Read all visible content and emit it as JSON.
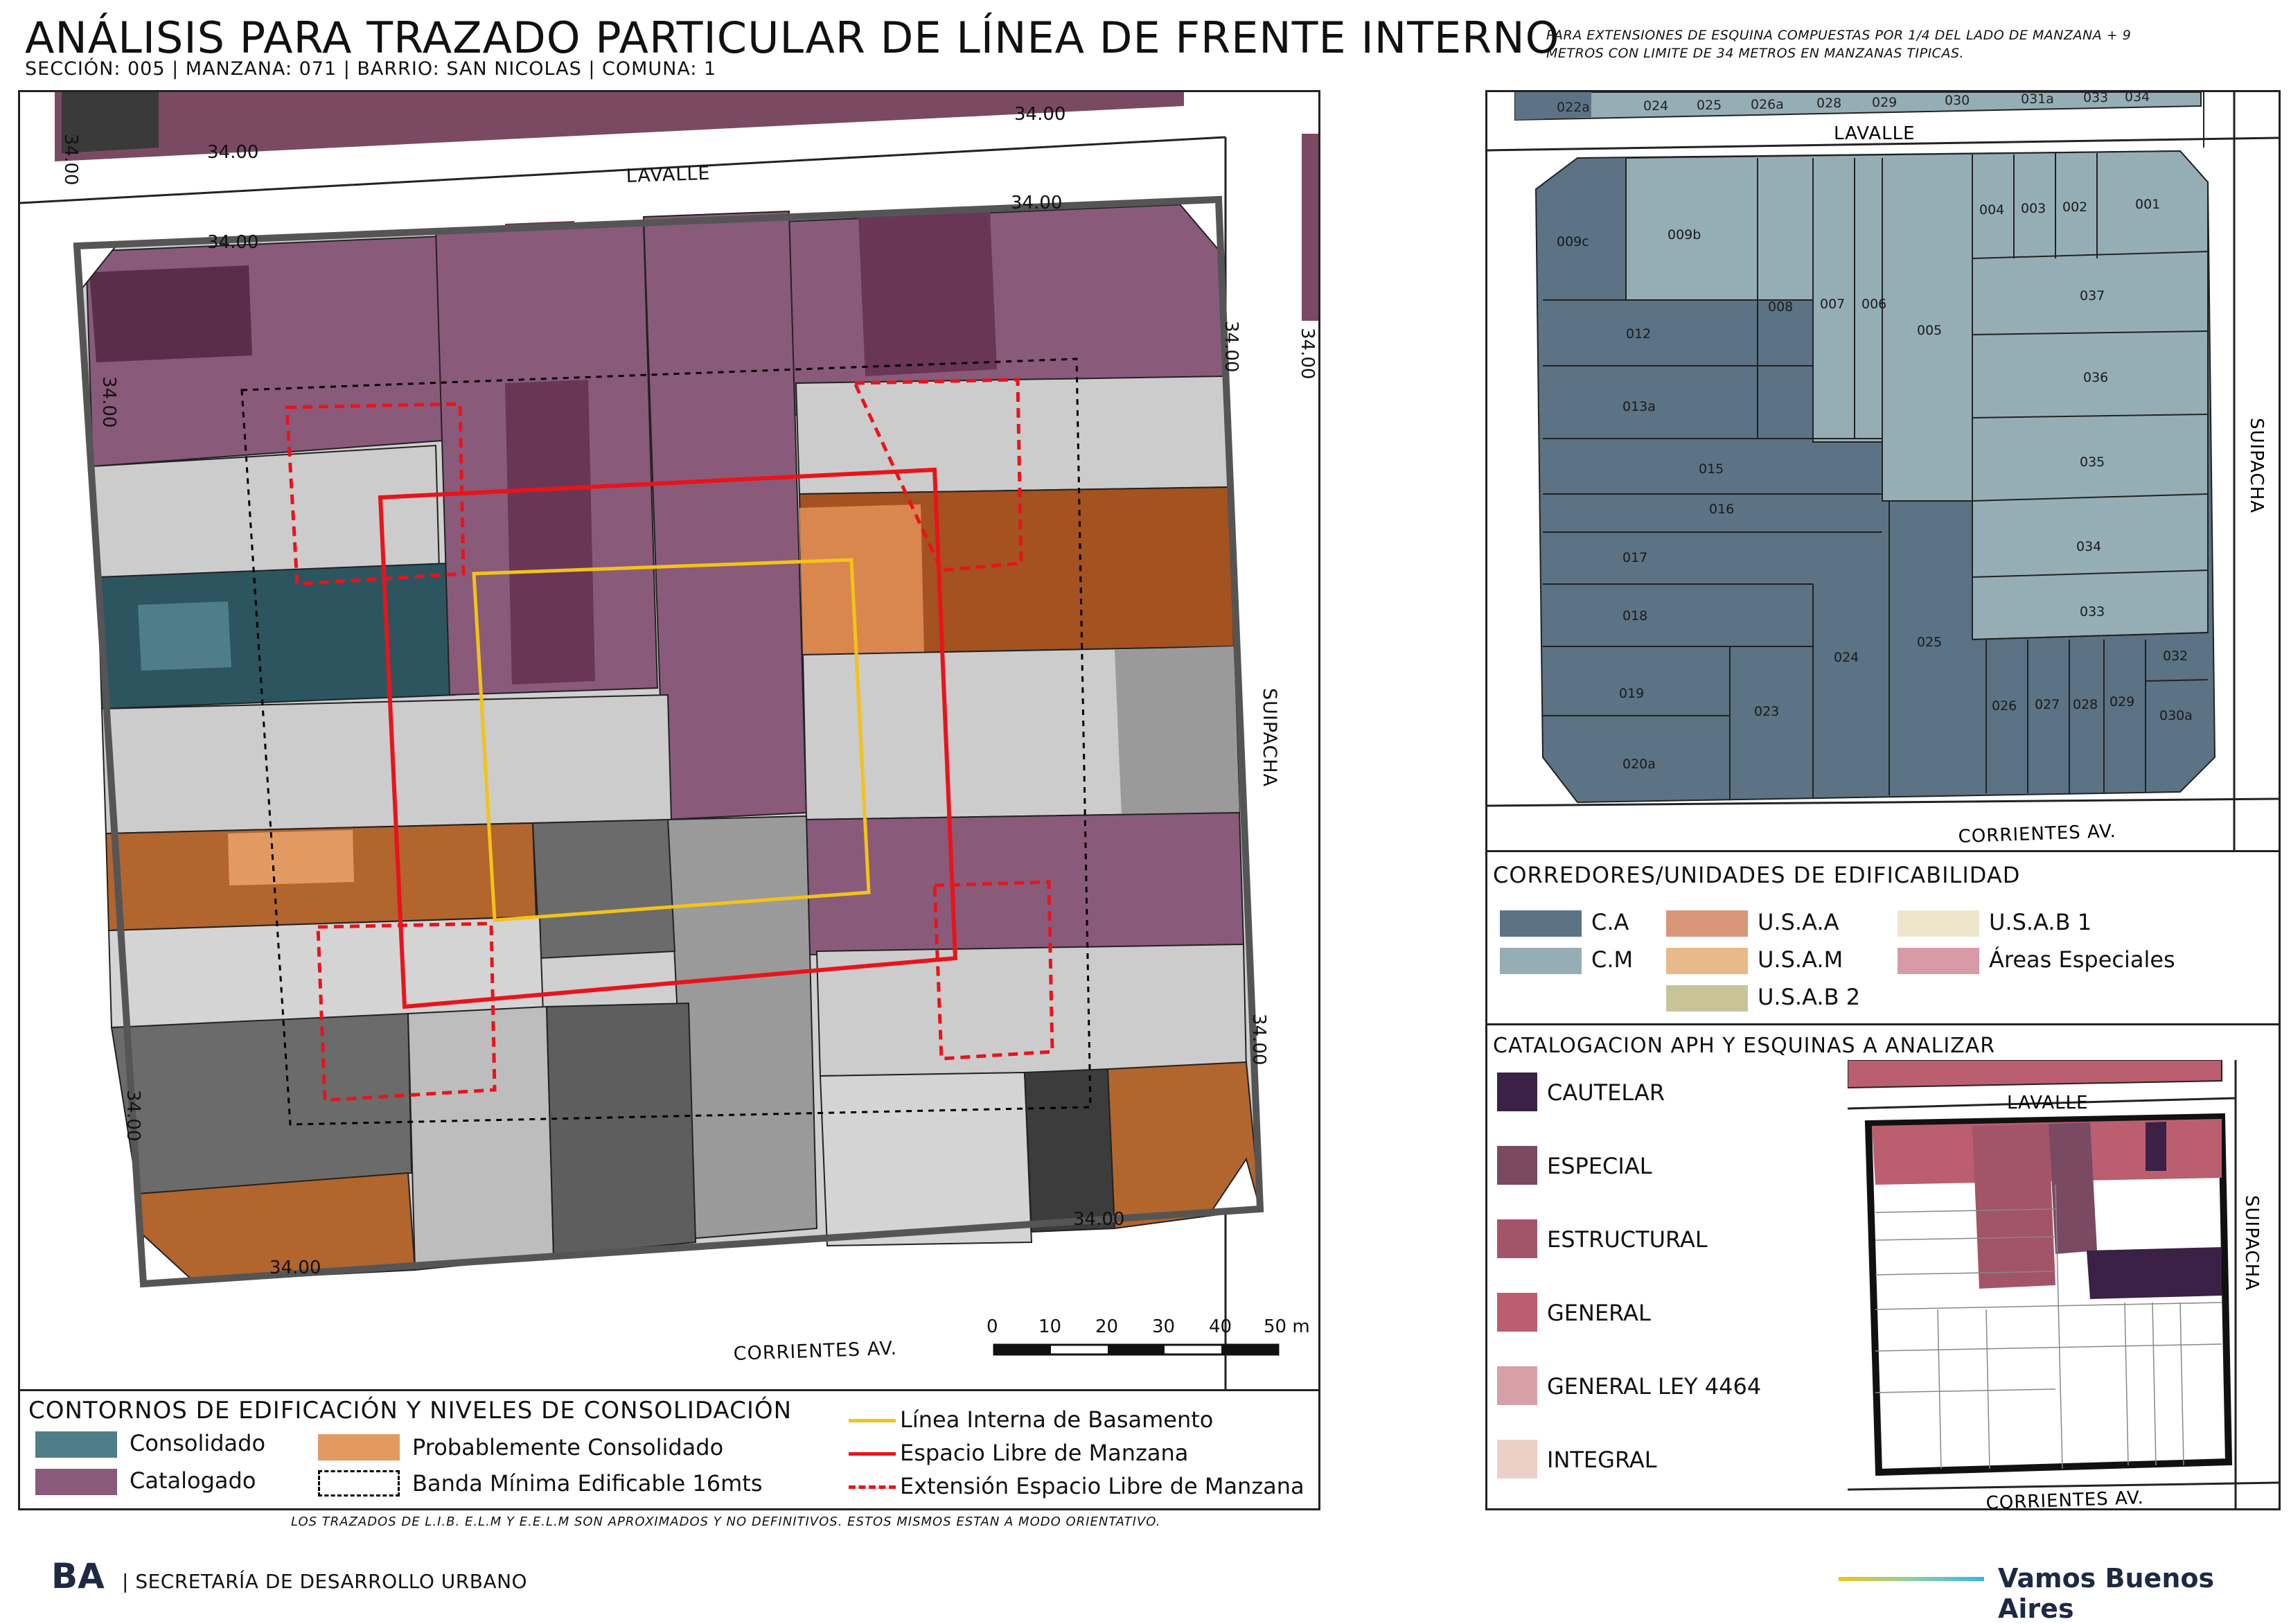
{
  "header": {
    "title": "ANÁLISIS PARA TRAZADO PARTICULAR DE LÍNEA DE FRENTE INTERNO",
    "subtitle": "SECCIÓN: 005 |  MANZANA: 071 | BARRIO: SAN NICOLAS | COMUNA: 1",
    "note_line1": "PARA EXTENSIONES DE ESQUINA COMPUESTAS POR 1/4 DEL LADO DE MANZANA + 9",
    "note_line2": "METROS CON LIMITE DE 34 METROS EN MANZANAS TIPICAS."
  },
  "main_map": {
    "streets": {
      "top": "LAVALLE",
      "right": "SUIPACHA",
      "bottom": "CORRIENTES AV."
    },
    "dimension_label": "34.00",
    "scale": {
      "ticks": [
        "0",
        "10",
        "20",
        "30",
        "40",
        "50 m"
      ]
    }
  },
  "legend_main": {
    "title": "CONTORNOS DE EDIFICACIÓN Y NIVELES DE CONSOLIDACIÓN",
    "items": [
      {
        "label": "Consolidado",
        "color": "#4f7d88"
      },
      {
        "label": "Catalogado",
        "color": "#8a5a7a"
      },
      {
        "label": "Probablemente Consolidado",
        "color": "#e39a62"
      },
      {
        "label": "Banda Mínima Edificable 16mts",
        "color": "#000000"
      }
    ],
    "lines": [
      {
        "label": "Línea Interna de Basamento",
        "color": "#f2c318"
      },
      {
        "label": "Espacio Libre de Manzana",
        "color": "#e8141b"
      },
      {
        "label": "Extensión Espacio Libre de Manzana",
        "color": "#e8141b"
      }
    ]
  },
  "parcel_map": {
    "streets": {
      "top": "LAVALLE",
      "right": "SUIPACHA",
      "bottom": "CORRIENTES AV."
    },
    "top_row_labels": [
      "022a",
      "024",
      "025",
      "026a",
      "028",
      "029",
      "030",
      "031a",
      "033",
      "034"
    ],
    "parcels": [
      "009c",
      "009b",
      "008",
      "007",
      "006",
      "005",
      "004",
      "003",
      "002",
      "001",
      "037",
      "012",
      "036",
      "013a",
      "015",
      "035",
      "016",
      "017",
      "034",
      "018",
      "033",
      "019",
      "024",
      "025",
      "032",
      "023",
      "026",
      "027",
      "028",
      "029",
      "030a",
      "020a"
    ]
  },
  "legend_corredores": {
    "title": "CORREDORES/UNIDADES DE EDIFICABILIDAD",
    "items": [
      {
        "label": "C.A",
        "color": "#5b7384"
      },
      {
        "label": "C.M",
        "color": "#95aeb6"
      },
      {
        "label": "U.S.A.A",
        "color": "#d9977a"
      },
      {
        "label": "U.S.A.M",
        "color": "#e8b989"
      },
      {
        "label": "U.S.A.B 2",
        "color": "#c9c39a"
      },
      {
        "label": "U.S.A.B 1",
        "color": "#ede6cc"
      },
      {
        "label": "Áreas Especiales",
        "color": "#d99aa8"
      }
    ]
  },
  "legend_aph": {
    "title": "CATALOGACION APH Y ESQUINAS A ANALIZAR",
    "items": [
      {
        "label": "CAUTELAR",
        "color": "#3b2146"
      },
      {
        "label": "ESPECIAL",
        "color": "#7a4a63"
      },
      {
        "label": "ESTRUCTURAL",
        "color": "#a35469"
      },
      {
        "label": "GENERAL",
        "color": "#bb5e70"
      },
      {
        "label": "GENERAL LEY 4464",
        "color": "#d7a0a7"
      },
      {
        "label": "INTEGRAL",
        "color": "#ecd0c8"
      }
    ],
    "streets": {
      "top": "LAVALLE",
      "right": "SUIPACHA",
      "bottom": "CORRIENTES AV."
    }
  },
  "footer": {
    "note": "LOS TRAZADOS DE L.I.B. E.L.M Y E.E.L.M SON APROXIMADOS Y NO DEFINITIVOS. ESTOS MISMOS ESTAN A MODO ORIENTATIVO.",
    "logo": "BA",
    "department": "| SECRETARÍA DE DESARROLLO URBANO",
    "slogan": "Vamos Buenos Aires"
  }
}
